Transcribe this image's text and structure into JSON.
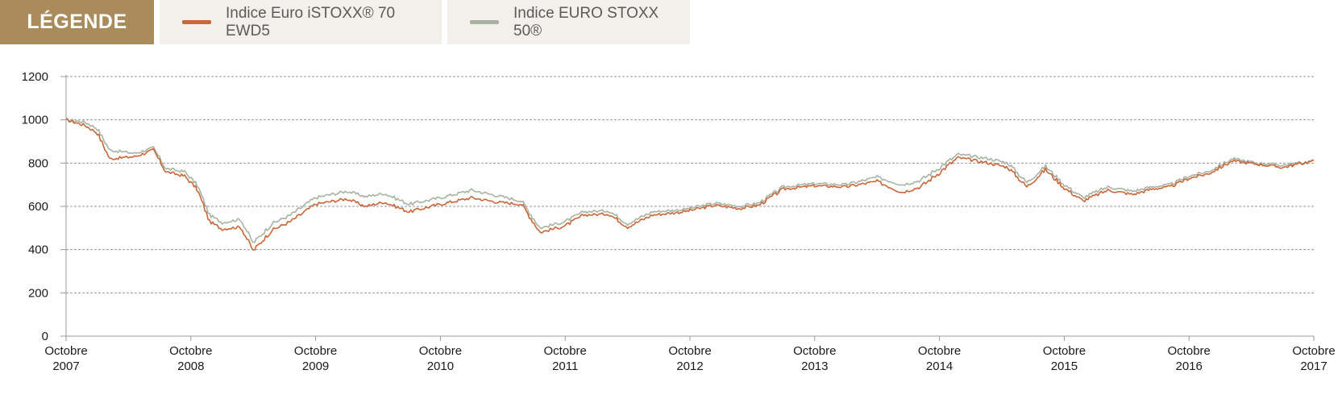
{
  "legend": {
    "title": "LÉGENDE",
    "items": [
      {
        "label": "Indice Euro iSTOXX® 70 EWD5",
        "color": "#c8673a"
      },
      {
        "label": "Indice EURO STOXX 50®",
        "color": "#a9b3a4"
      }
    ]
  },
  "chart_data": {
    "type": "line",
    "title": "",
    "xlabel": "",
    "ylabel": "",
    "ylim": [
      0,
      1200
    ],
    "yticks": [
      "0",
      "200",
      "400",
      "600",
      "800",
      "1000",
      "1200"
    ],
    "xlim": [
      2007.75,
      2017.75
    ],
    "xticks": [
      {
        "line1": "Octobre",
        "line2": "2007"
      },
      {
        "line1": "Octobre",
        "line2": "2008"
      },
      {
        "line1": "Octobre",
        "line2": "2009"
      },
      {
        "line1": "Octobre",
        "line2": "2010"
      },
      {
        "line1": "Octobre",
        "line2": "2011"
      },
      {
        "line1": "Octobre",
        "line2": "2012"
      },
      {
        "line1": "Octobre",
        "line2": "2013"
      },
      {
        "line1": "Octobre",
        "line2": "2014"
      },
      {
        "line1": "Octobre",
        "line2": "2015"
      },
      {
        "line1": "Octobre",
        "line2": "2016"
      },
      {
        "line1": "Octobre",
        "line2": "2017"
      }
    ],
    "grid": true,
    "legend_position": "top-left",
    "series": [
      {
        "name": "Indice EURO STOXX 50®",
        "color": "#a9b3a4",
        "x": [
          2007.75,
          2007.9,
          2008.0,
          2008.1,
          2008.3,
          2008.45,
          2008.55,
          2008.7,
          2008.8,
          2008.9,
          2009.0,
          2009.15,
          2009.25,
          2009.4,
          2009.55,
          2009.75,
          2010.0,
          2010.15,
          2010.3,
          2010.5,
          2010.75,
          2011.0,
          2011.2,
          2011.4,
          2011.55,
          2011.75,
          2011.9,
          2012.1,
          2012.25,
          2012.45,
          2012.7,
          2012.95,
          2013.15,
          2013.3,
          2013.5,
          2013.75,
          2014.0,
          2014.25,
          2014.45,
          2014.6,
          2014.9,
          2015.15,
          2015.3,
          2015.45,
          2015.6,
          2015.75,
          2015.9,
          2016.1,
          2016.3,
          2016.45,
          2016.6,
          2016.75,
          2016.9,
          2017.1,
          2017.3,
          2017.5,
          2017.75
        ],
        "values": [
          1000,
          990,
          960,
          860,
          845,
          870,
          775,
          760,
          700,
          560,
          525,
          540,
          430,
          520,
          560,
          640,
          670,
          645,
          660,
          610,
          640,
          675,
          650,
          625,
          500,
          530,
          575,
          580,
          520,
          575,
          585,
          615,
          600,
          615,
          690,
          705,
          700,
          735,
          700,
          720,
          840,
          820,
          800,
          710,
          785,
          700,
          640,
          690,
          670,
          690,
          700,
          740,
          760,
          820,
          800,
          790,
          810
        ]
      },
      {
        "name": "Indice Euro iSTOXX® 70 EWD5",
        "color": "#c8673a",
        "x": [
          2007.75,
          2007.9,
          2008.0,
          2008.1,
          2008.3,
          2008.45,
          2008.55,
          2008.7,
          2008.8,
          2008.9,
          2009.0,
          2009.15,
          2009.25,
          2009.4,
          2009.55,
          2009.75,
          2010.0,
          2010.15,
          2010.3,
          2010.5,
          2010.75,
          2011.0,
          2011.2,
          2011.4,
          2011.55,
          2011.75,
          2011.9,
          2012.1,
          2012.25,
          2012.45,
          2012.7,
          2012.95,
          2013.15,
          2013.3,
          2013.5,
          2013.75,
          2014.0,
          2014.25,
          2014.45,
          2014.6,
          2014.9,
          2015.15,
          2015.3,
          2015.45,
          2015.6,
          2015.75,
          2015.9,
          2016.1,
          2016.3,
          2016.45,
          2016.6,
          2016.75,
          2016.9,
          2017.1,
          2017.3,
          2017.5,
          2017.75
        ],
        "values": [
          1000,
          975,
          940,
          820,
          830,
          860,
          760,
          740,
          680,
          530,
          495,
          505,
          395,
          490,
          530,
          610,
          635,
          600,
          620,
          575,
          610,
          640,
          620,
          610,
          480,
          510,
          560,
          565,
          505,
          560,
          575,
          605,
          590,
          605,
          680,
          695,
          690,
          715,
          665,
          690,
          825,
          800,
          780,
          690,
          770,
          685,
          625,
          675,
          655,
          680,
          690,
          730,
          750,
          810,
          795,
          780,
          810
        ]
      }
    ]
  }
}
